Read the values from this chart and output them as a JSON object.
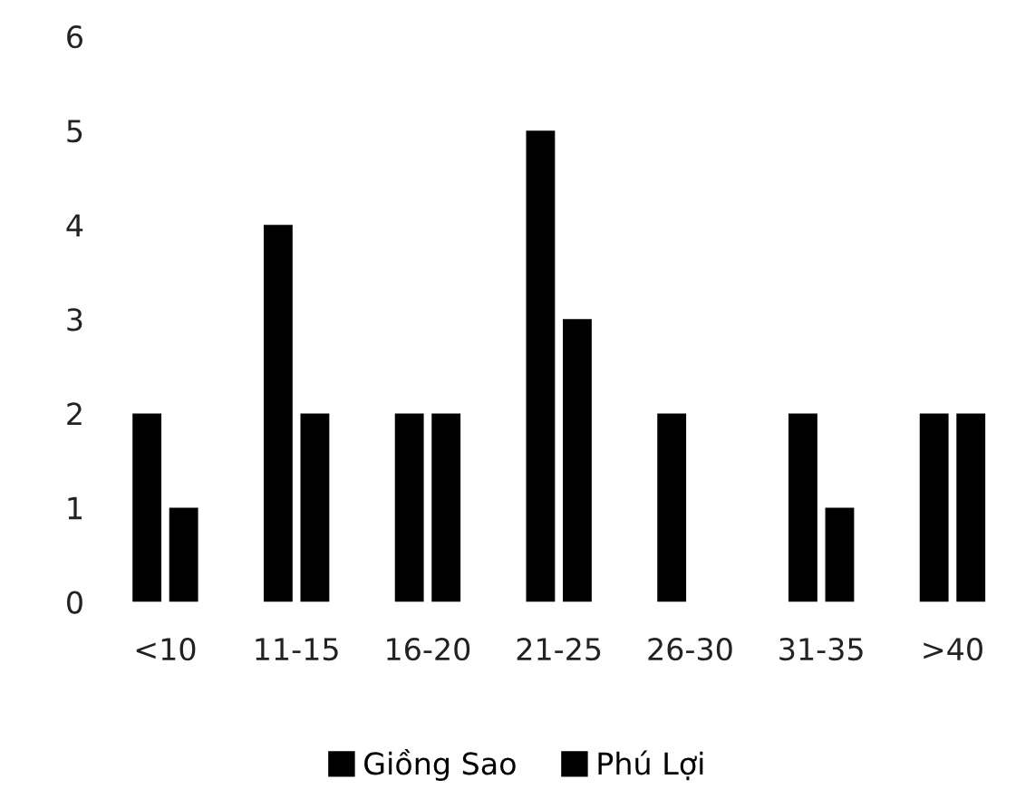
{
  "chart_data": {
    "type": "bar",
    "categories": [
      "<10",
      "11-15",
      "16-20",
      "21-25",
      "26-30",
      "31-35",
      ">40"
    ],
    "series": [
      {
        "name": "Giồng Sao",
        "color": "#000000",
        "values": [
          2,
          4,
          2,
          5,
          2,
          2,
          2
        ]
      },
      {
        "name": "Phú Lợi",
        "color": "#000000",
        "values": [
          1,
          2,
          2,
          3,
          0,
          1,
          2
        ]
      }
    ],
    "ylim": [
      0,
      6
    ],
    "yticks": [
      0,
      1,
      2,
      3,
      4,
      5,
      6
    ],
    "grid": false,
    "legend": "bottom"
  }
}
